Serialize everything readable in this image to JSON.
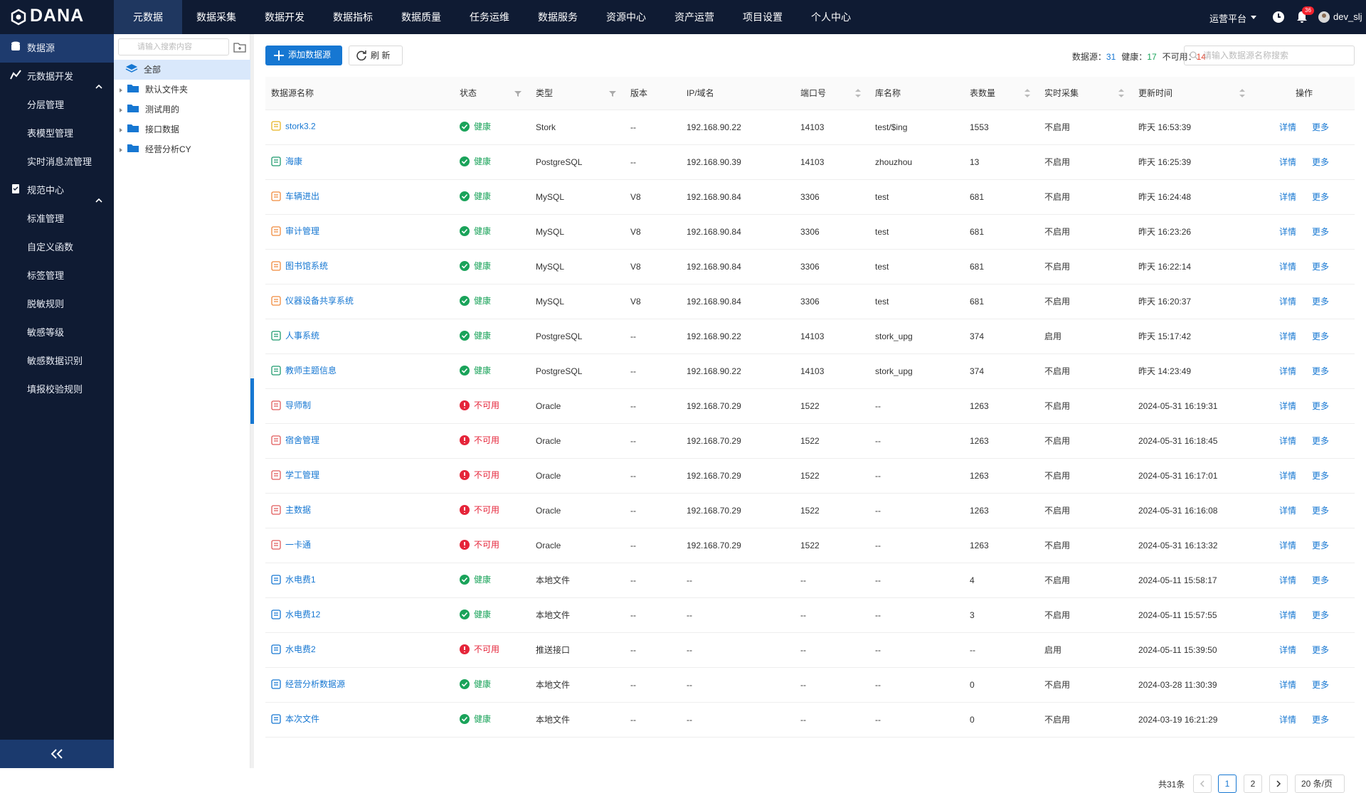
{
  "brand": "DANA",
  "topnav": {
    "tabs": [
      "元数据",
      "数据采集",
      "数据开发",
      "数据指标",
      "数据质量",
      "任务运维",
      "数据服务",
      "资源中心",
      "资产运营",
      "项目设置",
      "个人中心"
    ],
    "platform": "运营平台",
    "badge": "36",
    "user": "dev_slj"
  },
  "sidebar": {
    "items": [
      {
        "label": "数据源"
      },
      {
        "label": "元数据开发",
        "children": [
          "分层管理",
          "表模型管理",
          "实时消息流管理"
        ]
      },
      {
        "label": "规范中心",
        "children": [
          "标准管理",
          "自定义函数",
          "标签管理",
          "脱敏规则",
          "敏感等级",
          "敏感数据识别",
          "填报校验规则"
        ]
      }
    ]
  },
  "tree": {
    "search_placeholder": "请输入搜索内容",
    "nodes": [
      "全部",
      "默认文件夹",
      "测试用的",
      "接口数据",
      "经营分析CY"
    ]
  },
  "toolbar": {
    "add": "添加数据源",
    "refresh": "刷 新",
    "stats": [
      {
        "label": "数据源：",
        "value": "31"
      },
      {
        "label": "健康：",
        "value": "17"
      },
      {
        "label": "不可用：",
        "value": "14"
      }
    ],
    "search_placeholder": "请输入数据源名称搜索"
  },
  "table": {
    "columns": [
      "数据源名称",
      "状态",
      "类型",
      "版本",
      "IP/域名",
      "端口号",
      "库名称",
      "表数量",
      "实时采集",
      "更新时间",
      "操作"
    ],
    "actions": [
      "详情",
      "更多"
    ],
    "rows": [
      [
        "stork3.2",
        "健康",
        "Stork",
        "--",
        "192.168.90.22",
        "14103",
        "test/$ing",
        "1553",
        "不启用",
        "昨天 16:53:39"
      ],
      [
        "海康",
        "健康",
        "PostgreSQL",
        "--",
        "192.168.90.39",
        "14103",
        "zhouzhou",
        "13",
        "不启用",
        "昨天 16:25:39"
      ],
      [
        "车辆进出",
        "健康",
        "MySQL",
        "V8",
        "192.168.90.84",
        "3306",
        "test",
        "681",
        "不启用",
        "昨天 16:24:48"
      ],
      [
        "审计管理",
        "健康",
        "MySQL",
        "V8",
        "192.168.90.84",
        "3306",
        "test",
        "681",
        "不启用",
        "昨天 16:23:26"
      ],
      [
        "图书馆系统",
        "健康",
        "MySQL",
        "V8",
        "192.168.90.84",
        "3306",
        "test",
        "681",
        "不启用",
        "昨天 16:22:14"
      ],
      [
        "仪器设备共享系统",
        "健康",
        "MySQL",
        "V8",
        "192.168.90.84",
        "3306",
        "test",
        "681",
        "不启用",
        "昨天 16:20:37"
      ],
      [
        "人事系统",
        "健康",
        "PostgreSQL",
        "--",
        "192.168.90.22",
        "14103",
        "stork_upg",
        "374",
        "启用",
        "昨天 15:17:42"
      ],
      [
        "教师主题信息",
        "健康",
        "PostgreSQL",
        "--",
        "192.168.90.22",
        "14103",
        "stork_upg",
        "374",
        "不启用",
        "昨天 14:23:49"
      ],
      [
        "导师制",
        "不可用",
        "Oracle",
        "--",
        "192.168.70.29",
        "1522",
        "--",
        "1263",
        "不启用",
        "2024-05-31 16:19:31"
      ],
      [
        "宿舍管理",
        "不可用",
        "Oracle",
        "--",
        "192.168.70.29",
        "1522",
        "--",
        "1263",
        "不启用",
        "2024-05-31 16:18:45"
      ],
      [
        "学工管理",
        "不可用",
        "Oracle",
        "--",
        "192.168.70.29",
        "1522",
        "--",
        "1263",
        "不启用",
        "2024-05-31 16:17:01"
      ],
      [
        "主数据",
        "不可用",
        "Oracle",
        "--",
        "192.168.70.29",
        "1522",
        "--",
        "1263",
        "不启用",
        "2024-05-31 16:16:08"
      ],
      [
        "一卡通",
        "不可用",
        "Oracle",
        "--",
        "192.168.70.29",
        "1522",
        "--",
        "1263",
        "不启用",
        "2024-05-31 16:13:32"
      ],
      [
        "水电费1",
        "健康",
        "本地文件",
        "--",
        "--",
        "--",
        "--",
        "4",
        "不启用",
        "2024-05-11 15:58:17"
      ],
      [
        "水电费12",
        "健康",
        "本地文件",
        "--",
        "--",
        "--",
        "--",
        "3",
        "不启用",
        "2024-05-11 15:57:55"
      ],
      [
        "水电费2",
        "不可用",
        "推送接口",
        "--",
        "--",
        "--",
        "--",
        "--",
        "启用",
        "2024-05-11 15:39:50"
      ],
      [
        "经营分析数据源",
        "健康",
        "本地文件",
        "--",
        "--",
        "--",
        "--",
        "0",
        "不启用",
        "2024-03-28 11:30:39"
      ],
      [
        "本次文件",
        "健康",
        "本地文件",
        "--",
        "--",
        "--",
        "--",
        "0",
        "不启用",
        "2024-03-19 16:21:29"
      ]
    ]
  },
  "pagination": {
    "total": "共31条",
    "pages": [
      "1",
      "2"
    ],
    "size": "20 条/页"
  }
}
